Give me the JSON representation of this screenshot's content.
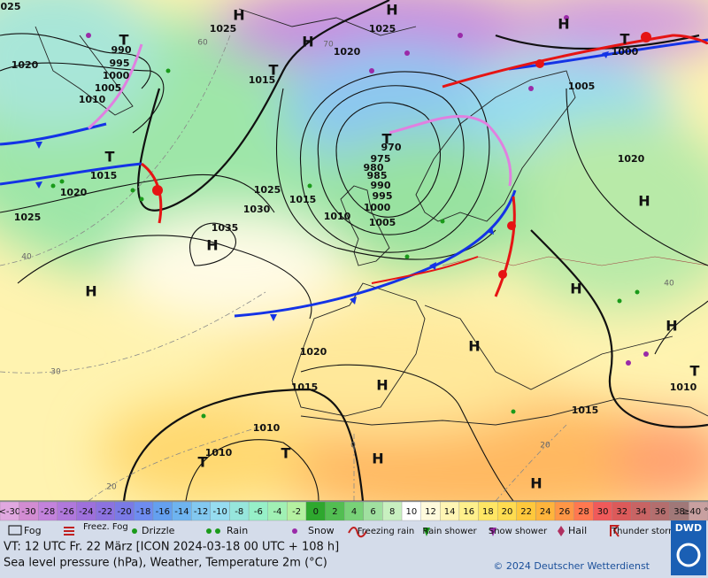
{
  "map": {
    "pressure_labels": [
      "025",
      "1025",
      "1025",
      "1020",
      "990",
      "995",
      "1000",
      "1005",
      "1010",
      "1015",
      "1020",
      "1000",
      "1005",
      "1020",
      "970",
      "975",
      "980",
      "985",
      "990",
      "995",
      "1000",
      "1005",
      "1010",
      "1015",
      "1025",
      "1030",
      "1035",
      "1015",
      "1020",
      "1025",
      "1020",
      "1015",
      "1010",
      "1010",
      "1010",
      "1015"
    ],
    "systems": [
      "H",
      "H",
      "H",
      "H",
      "H",
      "H",
      "H",
      "H",
      "H",
      "H",
      "H",
      "H",
      "H",
      "T",
      "T",
      "T",
      "T",
      "T",
      "T",
      "T",
      "T"
    ],
    "temperature_isoline_labels": [
      "60",
      "70",
      "40",
      "30",
      "20",
      "0",
      "20",
      "40"
    ]
  },
  "legend": {
    "temperature_scale": [
      {
        "label": "<-30",
        "color": "#e0a8e0"
      },
      {
        "label": -30,
        "color": "#d28cd2"
      },
      {
        "label": -28,
        "color": "#c382dc"
      },
      {
        "label": -26,
        "color": "#b078dc"
      },
      {
        "label": -24,
        "color": "#9e70dc"
      },
      {
        "label": -22,
        "color": "#8c72e0"
      },
      {
        "label": -20,
        "color": "#7a7ae6"
      },
      {
        "label": -18,
        "color": "#6e8cf0"
      },
      {
        "label": -16,
        "color": "#64a0f0"
      },
      {
        "label": -14,
        "color": "#6eb4f0"
      },
      {
        "label": -12,
        "color": "#82c8f0"
      },
      {
        "label": -10,
        "color": "#96dcf0"
      },
      {
        "label": -8,
        "color": "#96e6dc"
      },
      {
        "label": -6,
        "color": "#96f0c8"
      },
      {
        "label": -4,
        "color": "#a0f0b4"
      },
      {
        "label": -2,
        "color": "#b4f0a0"
      },
      {
        "label": 0,
        "color": "#2ea82e"
      },
      {
        "label": 2,
        "color": "#52be52"
      },
      {
        "label": 4,
        "color": "#78d278"
      },
      {
        "label": 6,
        "color": "#a0e0a0"
      },
      {
        "label": 8,
        "color": "#c8f0c0"
      },
      {
        "label": 10,
        "color": "#ffffff"
      },
      {
        "label": 12,
        "color": "#fffadc"
      },
      {
        "label": 14,
        "color": "#fff5b4"
      },
      {
        "label": 16,
        "color": "#fff08c"
      },
      {
        "label": 18,
        "color": "#ffe664"
      },
      {
        "label": 20,
        "color": "#ffdc50"
      },
      {
        "label": 22,
        "color": "#ffc83c"
      },
      {
        "label": 24,
        "color": "#ffb43c"
      },
      {
        "label": 26,
        "color": "#ff9646"
      },
      {
        "label": 28,
        "color": "#ff7850"
      },
      {
        "label": 30,
        "color": "#f05a5a"
      },
      {
        "label": 32,
        "color": "#dc5a5a"
      },
      {
        "label": 34,
        "color": "#c86464"
      },
      {
        "label": 36,
        "color": "#b46e6e"
      },
      {
        "label": 38,
        "color": "#a07878"
      },
      {
        "label": "≥40 °C",
        "color": "#c8a0a0"
      }
    ],
    "weather": [
      "Fog",
      "Freez. Fog",
      "Drizzle",
      "Rain",
      "Snow",
      "Freezing rain",
      "Rain shower",
      "Snow shower",
      "Hail",
      "Thunder storm"
    ],
    "logo": "DWD"
  },
  "footer": {
    "valid_time": "VT: 12 UTC Fr.  22 März [ICON 2024-03-18  00 UTC + 108 h]",
    "description": "Sea level pressure (hPa), Weather, Temperature 2m (°C)",
    "copyright": "© 2024 Deutscher Wetterdienst"
  }
}
